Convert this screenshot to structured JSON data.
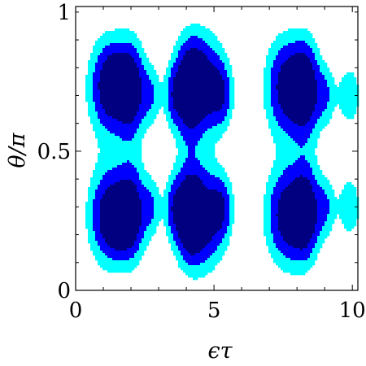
{
  "chart_data": {
    "type": "contour",
    "xlabel": "ϵτ",
    "ylabel": "θ/π",
    "xlim": [
      0,
      10.2
    ],
    "ylim": [
      0,
      1.02
    ],
    "x_ticks": [
      {
        "value": 0,
        "label": "0"
      },
      {
        "value": 5,
        "label": "5"
      },
      {
        "value": 10,
        "label": "10"
      }
    ],
    "y_ticks": [
      {
        "value": 0,
        "label": "0"
      },
      {
        "value": 0.5,
        "label": "0.5"
      },
      {
        "value": 1,
        "label": "1"
      }
    ],
    "levels": [
      {
        "name": "low",
        "color": "#00ffff"
      },
      {
        "name": "mid",
        "color": "#0000ff"
      },
      {
        "name": "high",
        "color": "#000080"
      }
    ],
    "background": "#ffffff",
    "band_centers_theta": [
      0.25,
      0.75
    ],
    "blobs": [
      {
        "x": 1.25,
        "y": 0.73,
        "sx": 0.55,
        "sy": 0.125,
        "strength": 1.0
      },
      {
        "x": 1.5,
        "y": 0.75,
        "sx": 0.3,
        "sy": 0.06,
        "strength": 0.55
      },
      {
        "x": 2.05,
        "y": 0.72,
        "sx": 0.35,
        "sy": 0.12,
        "strength": 0.85
      },
      {
        "x": 2.75,
        "y": 0.7,
        "sx": 0.25,
        "sy": 0.08,
        "strength": 0.45
      },
      {
        "x": 3.5,
        "y": 0.7,
        "sx": 0.22,
        "sy": 0.08,
        "strength": 0.45
      },
      {
        "x": 4.05,
        "y": 0.72,
        "sx": 0.35,
        "sy": 0.12,
        "strength": 0.85
      },
      {
        "x": 4.6,
        "y": 0.74,
        "sx": 0.55,
        "sy": 0.125,
        "strength": 1.0
      },
      {
        "x": 5.3,
        "y": 0.7,
        "sx": 0.28,
        "sy": 0.08,
        "strength": 0.5
      },
      {
        "x": 7.65,
        "y": 0.73,
        "sx": 0.55,
        "sy": 0.125,
        "strength": 1.0
      },
      {
        "x": 8.35,
        "y": 0.72,
        "sx": 0.35,
        "sy": 0.12,
        "strength": 0.85
      },
      {
        "x": 9.05,
        "y": 0.7,
        "sx": 0.25,
        "sy": 0.08,
        "strength": 0.45
      },
      {
        "x": 9.9,
        "y": 0.7,
        "sx": 0.3,
        "sy": 0.08,
        "strength": 0.5
      },
      {
        "x": 1.25,
        "y": 0.27,
        "sx": 0.55,
        "sy": 0.125,
        "strength": 1.0
      },
      {
        "x": 1.55,
        "y": 0.25,
        "sx": 0.3,
        "sy": 0.06,
        "strength": 0.55
      },
      {
        "x": 2.05,
        "y": 0.28,
        "sx": 0.35,
        "sy": 0.12,
        "strength": 0.85
      },
      {
        "x": 2.75,
        "y": 0.3,
        "sx": 0.25,
        "sy": 0.08,
        "strength": 0.45
      },
      {
        "x": 3.5,
        "y": 0.3,
        "sx": 0.22,
        "sy": 0.08,
        "strength": 0.45
      },
      {
        "x": 4.05,
        "y": 0.28,
        "sx": 0.35,
        "sy": 0.12,
        "strength": 0.85
      },
      {
        "x": 4.6,
        "y": 0.26,
        "sx": 0.55,
        "sy": 0.125,
        "strength": 1.0
      },
      {
        "x": 5.3,
        "y": 0.3,
        "sx": 0.28,
        "sy": 0.08,
        "strength": 0.5
      },
      {
        "x": 7.65,
        "y": 0.27,
        "sx": 0.55,
        "sy": 0.125,
        "strength": 1.0
      },
      {
        "x": 8.35,
        "y": 0.28,
        "sx": 0.35,
        "sy": 0.12,
        "strength": 0.85
      },
      {
        "x": 9.05,
        "y": 0.3,
        "sx": 0.25,
        "sy": 0.08,
        "strength": 0.45
      },
      {
        "x": 9.9,
        "y": 0.3,
        "sx": 0.3,
        "sy": 0.08,
        "strength": 0.5
      }
    ],
    "thresholds": [
      0.28,
      0.52,
      0.8
    ],
    "grid": false,
    "legend": "none"
  }
}
